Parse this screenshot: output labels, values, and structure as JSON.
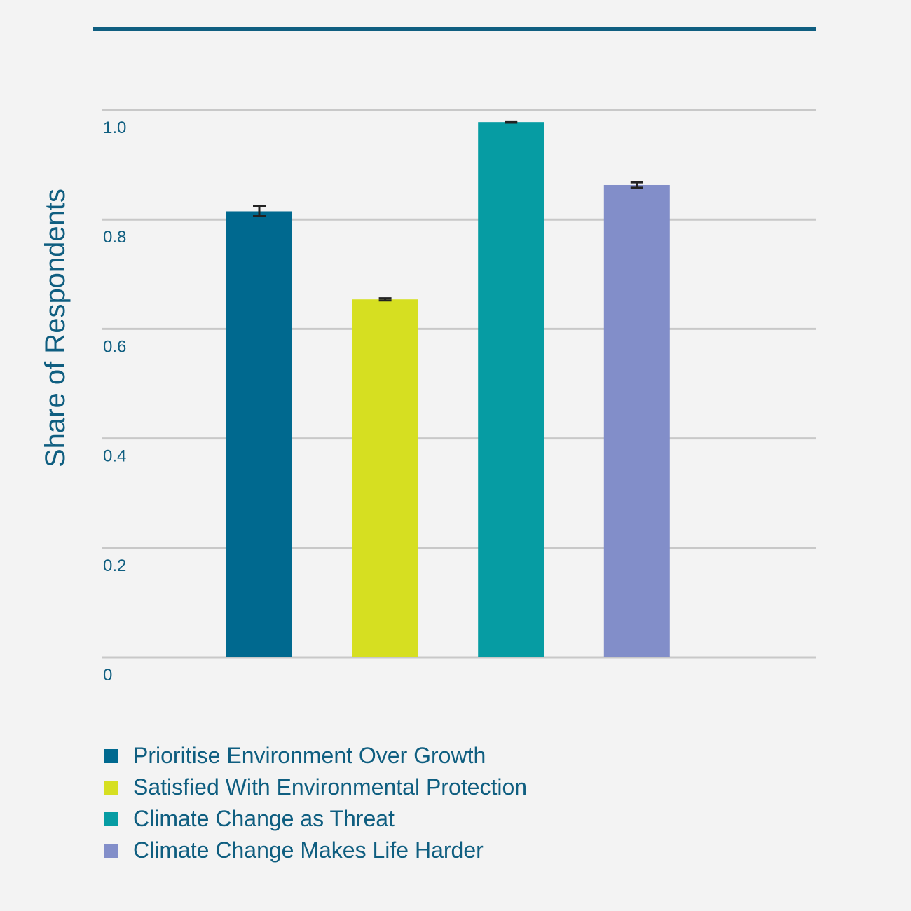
{
  "colors": {
    "background": "#f3f3f3",
    "accent": "#0f5e80",
    "gridline": "#c8c8c8",
    "error_bar": "#222222"
  },
  "chart_data": {
    "type": "bar",
    "title": "",
    "xlabel": "",
    "ylabel": "Share of Respondents",
    "ylim": [
      0,
      1.0
    ],
    "yticks": [
      0,
      0.2,
      0.4,
      0.6,
      0.8,
      1.0
    ],
    "ytick_labels": [
      "0",
      "0.2",
      "0.4",
      "0.6",
      "0.8",
      "1.0"
    ],
    "grid": true,
    "legend_position": "bottom",
    "series": [
      {
        "name": "Prioritise Environment Over Growth",
        "value": 0.815,
        "error": 0.009,
        "color": "#00698f"
      },
      {
        "name": "Satisfied With Environmental Protection",
        "value": 0.654,
        "error": 0.002,
        "color": "#d6df21"
      },
      {
        "name": "Climate Change as Threat",
        "value": 0.978,
        "error": 0.001,
        "color": "#069ca3"
      },
      {
        "name": "Climate Change Makes Life Harder",
        "value": 0.863,
        "error": 0.005,
        "color": "#828ec9"
      }
    ]
  }
}
